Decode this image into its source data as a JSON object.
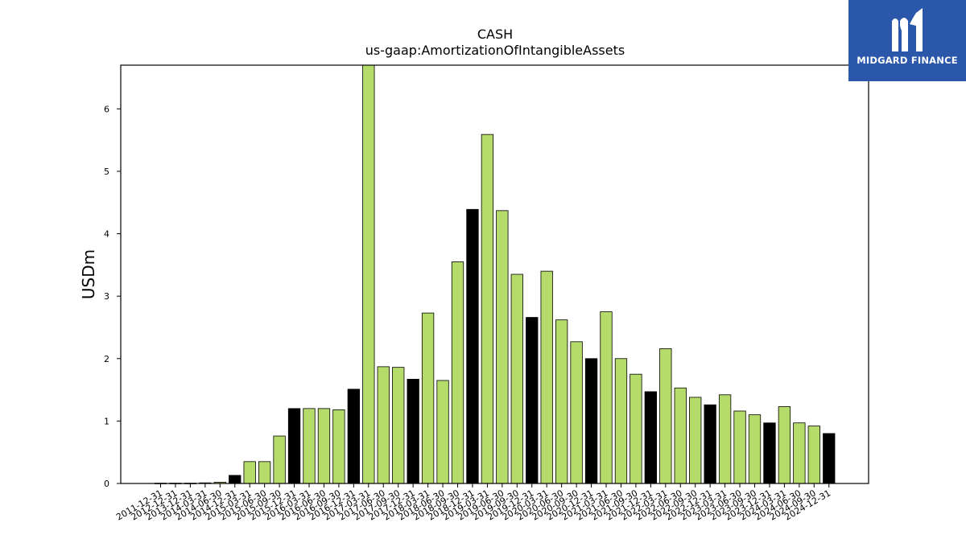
{
  "brand": {
    "name": "MIDGARD FINANCE",
    "bg_color": "#2b57ab"
  },
  "colors": {
    "standard": "#b5dc6a",
    "highlight": "#000000"
  },
  "chart_data": {
    "type": "bar",
    "title": "CASH",
    "subtitle": "us-gaap:AmortizationOfIntangibleAssets",
    "xlabel": "",
    "ylabel": "USDm",
    "ylim": [
      0,
      6.7
    ],
    "yticks": [
      0,
      1,
      2,
      3,
      4,
      5,
      6
    ],
    "grid": false,
    "categories": [
      "2011-12-31",
      "2012-12-31",
      "2013-12-31",
      "2014-03-31",
      "2014-06-30",
      "2014-12-31",
      "2015-03-31",
      "2015-06-30",
      "2015-09-30",
      "2015-12-31",
      "2016-03-31",
      "2016-06-30",
      "2016-09-30",
      "2016-12-31",
      "2017-03-31",
      "2017-06-30",
      "2017-09-30",
      "2017-12-31",
      "2018-03-31",
      "2018-06-30",
      "2018-09-30",
      "2018-12-31",
      "2019-03-31",
      "2019-06-30",
      "2019-09-30",
      "2019-12-31",
      "2020-03-31",
      "2020-06-30",
      "2020-09-30",
      "2020-12-31",
      "2021-03-31",
      "2021-06-30",
      "2021-09-30",
      "2021-12-31",
      "2022-03-31",
      "2022-06-30",
      "2022-09-30",
      "2022-12-31",
      "2023-03-31",
      "2023-06-30",
      "2023-09-30",
      "2023-12-31",
      "2024-03-31",
      "2024-06-30",
      "2024-09-30",
      "2024-12-31"
    ],
    "values": [
      0.005,
      0.005,
      0.005,
      0.01,
      0.02,
      0.13,
      0.35,
      0.35,
      0.76,
      1.2,
      1.2,
      1.2,
      1.18,
      1.51,
      6.7,
      1.87,
      1.86,
      1.67,
      2.73,
      1.65,
      3.55,
      4.39,
      5.59,
      4.37,
      3.35,
      2.66,
      3.4,
      2.62,
      2.27,
      2.0,
      2.75,
      2.0,
      1.75,
      1.47,
      2.16,
      1.53,
      1.38,
      1.26,
      1.42,
      1.16,
      1.1,
      0.97,
      1.23,
      0.97,
      0.92,
      0.8
    ],
    "highlight": [
      false,
      false,
      false,
      false,
      false,
      true,
      false,
      false,
      false,
      true,
      false,
      false,
      false,
      true,
      false,
      false,
      false,
      true,
      false,
      false,
      false,
      true,
      false,
      false,
      false,
      true,
      false,
      false,
      false,
      true,
      false,
      false,
      false,
      true,
      false,
      false,
      false,
      true,
      false,
      false,
      false,
      true,
      false,
      false,
      false,
      true
    ]
  }
}
